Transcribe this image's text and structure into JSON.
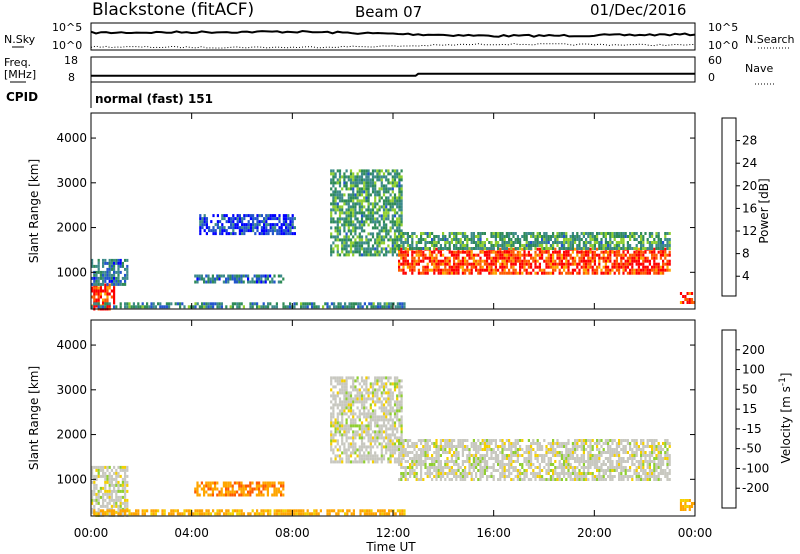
{
  "header": {
    "station": "Blackstone (fitACF)",
    "beam": "Beam 07",
    "date": "01/Dec/2016"
  },
  "top_panels": {
    "nsky_label": "N.Sky",
    "nsky_ticks": [
      "10^5",
      "10^0"
    ],
    "nsearch_label": "N.Search",
    "nsearch_ticks": [
      "10^5",
      "10^0"
    ],
    "freq_label": "Freq.",
    "freq_unit": "[MHz]",
    "freq_ticks": [
      "18",
      "8"
    ],
    "nave_label": "Nave",
    "nave_ticks": [
      "60",
      "0"
    ],
    "cpid_label": "CPID",
    "cpid_value": "normal (fast) 151"
  },
  "colors": {
    "power_scale": [
      "#0000ff",
      "#2255cc",
      "#3c8a8a",
      "#2e8b57",
      "#8fcf2f",
      "#f4d000",
      "#ffa500",
      "#ff5a00",
      "#ff0000"
    ],
    "velocity_scale": [
      "#ff0000",
      "#ff5a00",
      "#ffa500",
      "#f4d000",
      "#c8c8c0",
      "#8fcf2f",
      "#2e8b57",
      "#3c8a8a",
      "#2255cc",
      "#0000ff"
    ]
  },
  "chart_data": [
    {
      "type": "line",
      "title": "N.Sky / N.Search",
      "x": [
        "00:00",
        "04:00",
        "08:00",
        "12:00",
        "16:00",
        "20:00",
        "00:00"
      ],
      "series": [
        {
          "name": "N.Sky",
          "values": [
            3.2,
            3.3,
            3.4,
            3.0,
            2.6,
            2.7,
            2.9
          ]
        },
        {
          "name": "N.Search",
          "values": [
            0.6,
            0.5,
            0.5,
            0.7,
            1.1,
            1.0,
            0.9
          ]
        }
      ],
      "ylim": [
        0,
        5
      ]
    },
    {
      "type": "line",
      "title": "Freq. / Nave",
      "x": [
        "00:00",
        "04:00",
        "08:00",
        "12:00",
        "13:00",
        "16:00",
        "20:00",
        "00:00"
      ],
      "series": [
        {
          "name": "Freq.",
          "values": [
            10.5,
            10.5,
            10.5,
            10.5,
            11.3,
            11.3,
            11.3,
            11.3
          ]
        }
      ],
      "ylim": [
        8,
        18
      ]
    },
    {
      "type": "heatmap",
      "title": "Power",
      "xlabel": "",
      "ylabel": "Slant Range [km]",
      "x_ticks": [
        "00:00",
        "04:00",
        "08:00",
        "12:00",
        "16:00",
        "20:00",
        "00:00"
      ],
      "y_ticks": [
        1000,
        2000,
        3000,
        4000
      ],
      "xlim": [
        0,
        24
      ],
      "ylim": [
        180,
        4560
      ],
      "colorbar_label": "Power [dB]",
      "colorbar_ticks": [
        4,
        8,
        12,
        16,
        20,
        24,
        28
      ],
      "regions": [
        {
          "t0": 0.0,
          "t1": 0.9,
          "r0": 200,
          "r1": 750,
          "level": 28
        },
        {
          "t0": 0.0,
          "t1": 1.4,
          "r0": 750,
          "r1": 1300,
          "level": 8
        },
        {
          "t0": 0.0,
          "t1": 12.5,
          "r0": 220,
          "r1": 330,
          "level": 10
        },
        {
          "t0": 4.1,
          "t1": 7.6,
          "r0": 780,
          "r1": 950,
          "level": 8
        },
        {
          "t0": 4.3,
          "t1": 8.1,
          "r0": 1850,
          "r1": 2300,
          "level": 4
        },
        {
          "t0": 9.5,
          "t1": 12.3,
          "r0": 1400,
          "r1": 3300,
          "level": 12
        },
        {
          "t0": 12.2,
          "t1": 23.0,
          "r0": 1000,
          "r1": 1550,
          "level": 28
        },
        {
          "t0": 12.2,
          "t1": 23.0,
          "r0": 1550,
          "r1": 1900,
          "level": 12
        },
        {
          "t0": 23.4,
          "t1": 24.0,
          "r0": 320,
          "r1": 560,
          "level": 28
        }
      ]
    },
    {
      "type": "heatmap",
      "title": "Velocity",
      "xlabel": "Time UT",
      "ylabel": "Slant Range [km]",
      "x_ticks": [
        "00:00",
        "04:00",
        "08:00",
        "12:00",
        "16:00",
        "20:00",
        "00:00"
      ],
      "y_ticks": [
        1000,
        2000,
        3000,
        4000
      ],
      "xlim": [
        0,
        24
      ],
      "ylim": [
        180,
        4560
      ],
      "colorbar_label": "Velocity [m s^-1]",
      "colorbar_ticks": [
        200,
        100,
        50,
        15,
        -15,
        -50,
        -100,
        -200
      ],
      "regions": [
        {
          "t0": 0.0,
          "t1": 1.4,
          "r0": 220,
          "r1": 1300,
          "level": 0
        },
        {
          "t0": 0.0,
          "t1": 12.5,
          "r0": 220,
          "r1": 330,
          "level": -60
        },
        {
          "t0": 4.1,
          "t1": 7.6,
          "r0": 650,
          "r1": 950,
          "level": -90
        },
        {
          "t0": 9.5,
          "t1": 12.3,
          "r0": 1400,
          "r1": 3300,
          "level": 0
        },
        {
          "t0": 12.2,
          "t1": 23.0,
          "r0": 1000,
          "r1": 1900,
          "level": 0
        },
        {
          "t0": 23.4,
          "t1": 24.0,
          "r0": 320,
          "r1": 560,
          "level": -60
        }
      ]
    }
  ],
  "axis": {
    "x_title": "Time UT",
    "y_title": "Slant Range [km]",
    "power_label": "Power [dB]",
    "velocity_label": "Velocity [m s",
    "velocity_exp": "-1",
    "velocity_label_end": "]"
  }
}
